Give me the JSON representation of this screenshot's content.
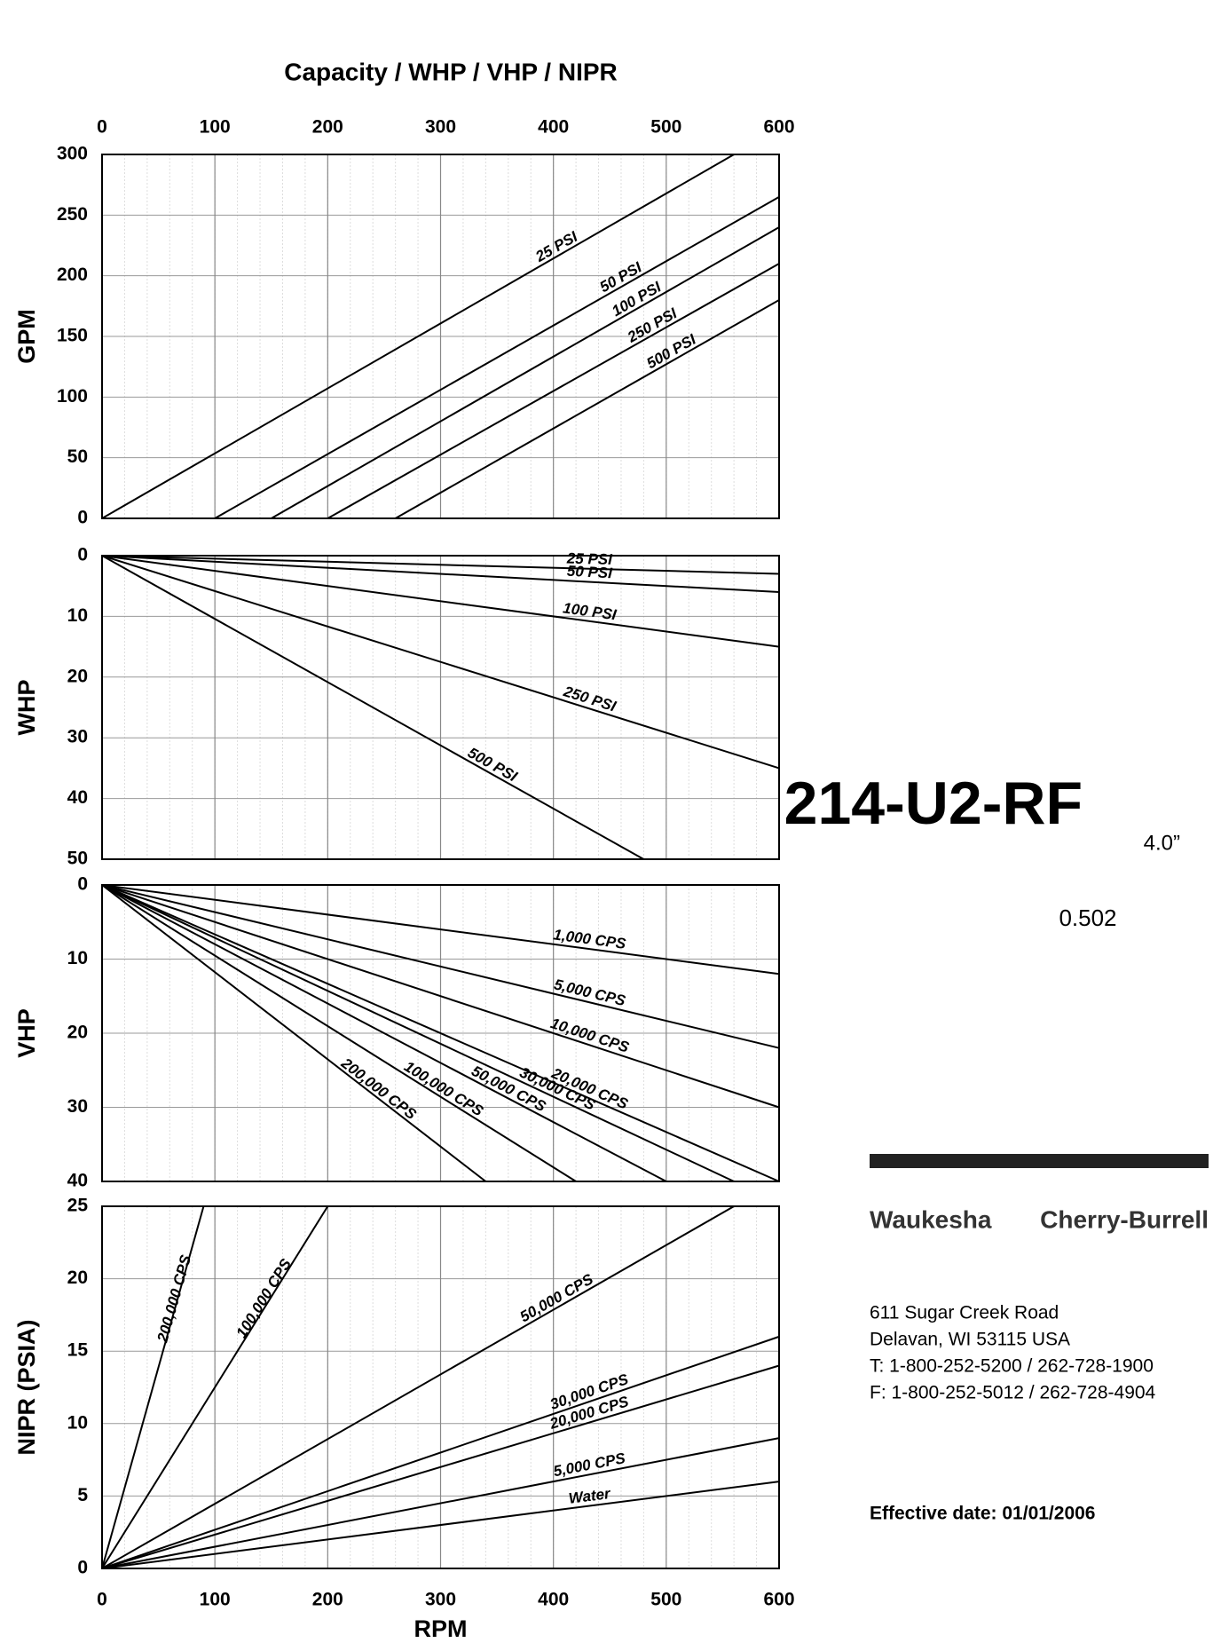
{
  "chart_data": [
    {
      "type": "line",
      "title": "Capacity / WHP / VHP / NIPR",
      "y_label": "GPM",
      "xaxis": "top",
      "xlim": [
        0,
        600
      ],
      "xticks": [
        0,
        100,
        200,
        300,
        400,
        500,
        600
      ],
      "ylim": [
        0,
        300
      ],
      "yticks": [
        0,
        50,
        100,
        150,
        200,
        250,
        300
      ],
      "grid": true,
      "series": [
        {
          "name": "25 PSI",
          "color": "#000000",
          "x": [
            0,
            560
          ],
          "values": [
            0,
            300
          ]
        },
        {
          "name": "50 PSI",
          "color": "#000000",
          "x": [
            100,
            600
          ],
          "values": [
            0,
            265
          ]
        },
        {
          "name": "100 PSI",
          "color": "#000000",
          "x": [
            150,
            600
          ],
          "values": [
            0,
            240
          ]
        },
        {
          "name": "250 PSI",
          "color": "#000000",
          "x": [
            200,
            600
          ],
          "values": [
            0,
            210
          ]
        },
        {
          "name": "500 PSI",
          "color": "#000000",
          "x": [
            260,
            600
          ],
          "values": [
            0,
            180
          ]
        }
      ]
    },
    {
      "type": "line",
      "y_label": "WHP",
      "xaxis": "none",
      "xlim": [
        0,
        600
      ],
      "xticks": [
        0,
        100,
        200,
        300,
        400,
        500,
        600
      ],
      "ylim": [
        50,
        0
      ],
      "yticks": [
        0,
        10,
        20,
        30,
        40,
        50
      ],
      "grid": true,
      "series": [
        {
          "name": "25 PSI",
          "color": "#000000",
          "x": [
            0,
            600
          ],
          "values": [
            0,
            3
          ]
        },
        {
          "name": "50 PSI",
          "color": "#000000",
          "x": [
            0,
            600
          ],
          "values": [
            0,
            6
          ]
        },
        {
          "name": "100 PSI",
          "color": "#000000",
          "x": [
            0,
            600
          ],
          "values": [
            0,
            15
          ]
        },
        {
          "name": "250 PSI",
          "color": "#000000",
          "x": [
            0,
            600
          ],
          "values": [
            0,
            35
          ]
        },
        {
          "name": "500 PSI",
          "color": "#000000",
          "x": [
            0,
            480
          ],
          "values": [
            0,
            50
          ]
        }
      ]
    },
    {
      "type": "line",
      "y_label": "VHP",
      "xaxis": "none",
      "xlim": [
        0,
        600
      ],
      "xticks": [
        0,
        100,
        200,
        300,
        400,
        500,
        600
      ],
      "ylim": [
        40,
        0
      ],
      "yticks": [
        0,
        10,
        20,
        30,
        40
      ],
      "grid": true,
      "series": [
        {
          "name": "1,000 CPS",
          "color": "#000000",
          "x": [
            0,
            600
          ],
          "values": [
            0,
            12
          ]
        },
        {
          "name": "5,000 CPS",
          "color": "#000000",
          "x": [
            0,
            600
          ],
          "values": [
            0,
            22
          ]
        },
        {
          "name": "10,000 CPS",
          "color": "#000000",
          "x": [
            0,
            600
          ],
          "values": [
            0,
            30
          ]
        },
        {
          "name": "20,000 CPS",
          "color": "#000000",
          "x": [
            0,
            600
          ],
          "values": [
            0,
            40
          ]
        },
        {
          "name": "30,000 CPS",
          "color": "#000000",
          "x": [
            0,
            560
          ],
          "values": [
            0,
            40
          ]
        },
        {
          "name": "50,000 CPS",
          "color": "#000000",
          "x": [
            0,
            500
          ],
          "values": [
            0,
            40
          ]
        },
        {
          "name": "100,000 CPS",
          "color": "#000000",
          "x": [
            0,
            420
          ],
          "values": [
            0,
            40
          ]
        },
        {
          "name": "200,000 CPS",
          "color": "#000000",
          "x": [
            0,
            340
          ],
          "values": [
            0,
            40
          ]
        }
      ]
    },
    {
      "type": "line",
      "y_label": "NIPR (PSIA)",
      "x_label": "RPM",
      "xaxis": "bottom",
      "xlim": [
        0,
        600
      ],
      "xticks": [
        0,
        100,
        200,
        300,
        400,
        500,
        600
      ],
      "ylim": [
        0,
        25
      ],
      "yticks": [
        0,
        5,
        10,
        15,
        20,
        25
      ],
      "grid": true,
      "series": [
        {
          "name": "Water",
          "color": "#000000",
          "x": [
            0,
            600
          ],
          "values": [
            0,
            6
          ]
        },
        {
          "name": "5,000 CPS",
          "color": "#000000",
          "x": [
            0,
            600
          ],
          "values": [
            0,
            9
          ]
        },
        {
          "name": "20,000 CPS",
          "color": "#000000",
          "x": [
            0,
            600
          ],
          "values": [
            0,
            14
          ]
        },
        {
          "name": "30,000 CPS",
          "color": "#000000",
          "x": [
            0,
            600
          ],
          "values": [
            0,
            16
          ]
        },
        {
          "name": "50,000 CPS",
          "color": "#000000",
          "x": [
            0,
            560
          ],
          "values": [
            0,
            25
          ]
        },
        {
          "name": "100,000 CPS",
          "color": "#000000",
          "x": [
            0,
            200
          ],
          "values": [
            0,
            25
          ]
        },
        {
          "name": "200,000 CPS",
          "color": "#000000",
          "x": [
            0,
            90
          ],
          "values": [
            0,
            25
          ]
        }
      ]
    }
  ],
  "product": {
    "model": "214-U2-RF",
    "port_size": "4.0”",
    "displacement": "0.502"
  },
  "company": {
    "brand_left": "Waukesha",
    "brand_right": "Cherry-Burrell",
    "address": [
      "611 Sugar Creek Road",
      "Delavan, WI 53115 USA",
      "T: 1-800-252-5200 / 262-728-1900",
      "F: 1-800-252-5012 / 262-728-4904"
    ],
    "effective_date": "Effective date: 01/01/2006"
  }
}
